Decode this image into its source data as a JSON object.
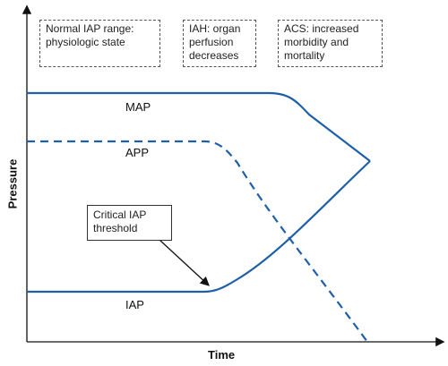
{
  "phases": [
    {
      "id": "normal",
      "text": "Normal IAP range: physiologic state"
    },
    {
      "id": "iah",
      "text": "IAH: organ perfusion decreases"
    },
    {
      "id": "acs",
      "text": "ACS: increased morbidity and mortality"
    }
  ],
  "curves": {
    "map": {
      "label": "MAP"
    },
    "app": {
      "label": "APP"
    },
    "iap": {
      "label": "IAP"
    }
  },
  "callout": {
    "text": "Critical IAP threshold"
  },
  "axes": {
    "x_label": "Time",
    "y_label": "Pressure"
  },
  "colors": {
    "curve": "#1f5fa8",
    "axis": "#111111",
    "box_border": "#555555"
  }
}
